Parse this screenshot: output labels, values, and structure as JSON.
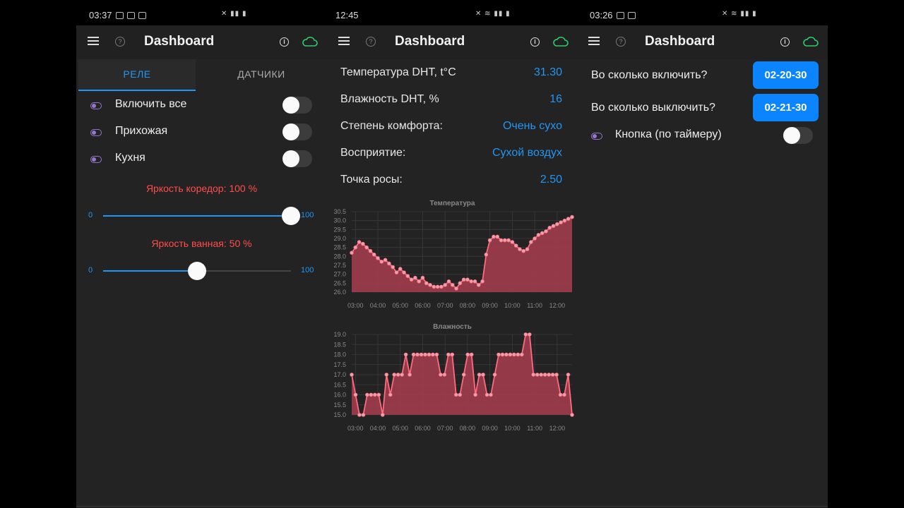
{
  "colors": {
    "accent": "#2196f3",
    "chart_line": "#ff6b81",
    "chart_fill": "#a13c4c",
    "cloud": "#2ecc71",
    "warning_text": "#ff4d4d",
    "toggle": "#9575cd"
  },
  "phones": [
    {
      "status_time": "03:37",
      "title": "Dashboard"
    },
    {
      "status_time": "12:45",
      "title": "Dashboard"
    },
    {
      "status_time": "03:26",
      "title": "Dashboard"
    }
  ],
  "relay": {
    "tabs": [
      "РЕЛЕ",
      "ДАТЧИКИ"
    ],
    "items": [
      {
        "label": "Включить все",
        "on": false
      },
      {
        "label": "Прихожая",
        "on": false
      },
      {
        "label": "Кухня",
        "on": false
      }
    ],
    "sliders": [
      {
        "label": "Яркость коредор: 100 %",
        "min": "0",
        "max": "100",
        "value": 100
      },
      {
        "label": "Яркость ванная: 50 %",
        "min": "0",
        "max": "100",
        "value": 50
      }
    ]
  },
  "sensors": {
    "rows": [
      {
        "key": "Температура DHT, t°C",
        "value": "31.30"
      },
      {
        "key": "Влажность DHT, %",
        "value": "16"
      },
      {
        "key": "Степень комфорта:",
        "value": "Очень сухо"
      },
      {
        "key": "Восприятие:",
        "value": "Сухой воздух"
      },
      {
        "key": "Точка росы:",
        "value": "2.50"
      }
    ]
  },
  "chart_data": [
    {
      "type": "area",
      "title": "Температура",
      "x_ticks": [
        "03:00",
        "04:00",
        "05:00",
        "06:00",
        "07:00",
        "08:00",
        "09:00",
        "10:00",
        "11:00",
        "12:00"
      ],
      "y_ticks": [
        "26.0",
        "26.5",
        "27.0",
        "27.5",
        "28.0",
        "28.5",
        "29.0",
        "29.5",
        "30.0",
        "30.5"
      ],
      "ylim": [
        26.0,
        30.5
      ],
      "xlim": [
        "02:50",
        "12:40"
      ],
      "values": [
        28.2,
        28.5,
        28.8,
        28.7,
        28.5,
        28.3,
        28.1,
        27.9,
        27.7,
        27.8,
        27.6,
        27.4,
        27.1,
        27.3,
        27.1,
        26.9,
        26.7,
        26.8,
        26.6,
        26.8,
        26.5,
        26.4,
        26.3,
        26.3,
        26.3,
        26.4,
        26.6,
        26.4,
        26.2,
        26.5,
        26.7,
        26.7,
        26.6,
        26.6,
        26.4,
        26.6,
        28.1,
        28.9,
        29.1,
        29.1,
        28.9,
        28.9,
        28.9,
        28.8,
        28.6,
        28.4,
        28.3,
        28.4,
        28.8,
        29.0,
        29.2,
        29.3,
        29.4,
        29.6,
        29.7,
        29.8,
        29.9,
        30.0,
        30.1,
        30.2
      ]
    },
    {
      "type": "area",
      "title": "Влажность",
      "x_ticks": [
        "03:00",
        "04:00",
        "05:00",
        "06:00",
        "07:00",
        "08:00",
        "09:00",
        "10:00",
        "11:00",
        "12:00"
      ],
      "y_ticks": [
        "15.0",
        "15.5",
        "16.0",
        "16.5",
        "17.0",
        "17.5",
        "18.0",
        "18.5",
        "19.0"
      ],
      "ylim": [
        15.0,
        19.0
      ],
      "xlim": [
        "02:50",
        "12:40"
      ],
      "values": [
        17,
        16,
        15,
        15,
        16,
        16,
        16,
        16,
        15,
        17,
        16,
        17,
        17,
        17,
        18,
        17,
        18,
        18,
        18,
        18,
        18,
        18,
        18,
        17,
        17,
        18,
        18,
        16,
        16,
        17,
        18,
        18,
        16,
        17,
        17,
        16,
        16,
        17,
        18,
        18,
        18,
        18,
        18,
        18,
        18,
        19,
        19,
        17,
        17,
        17,
        17,
        17,
        17,
        17,
        16,
        16,
        17,
        15
      ]
    }
  ],
  "timer": {
    "rows": [
      {
        "label": "Во сколько включить?",
        "value": "02-20-30"
      },
      {
        "label": "Во сколько выключить?",
        "value": "02-21-30"
      }
    ],
    "button_label": "Кнопка (по таймеру)"
  }
}
